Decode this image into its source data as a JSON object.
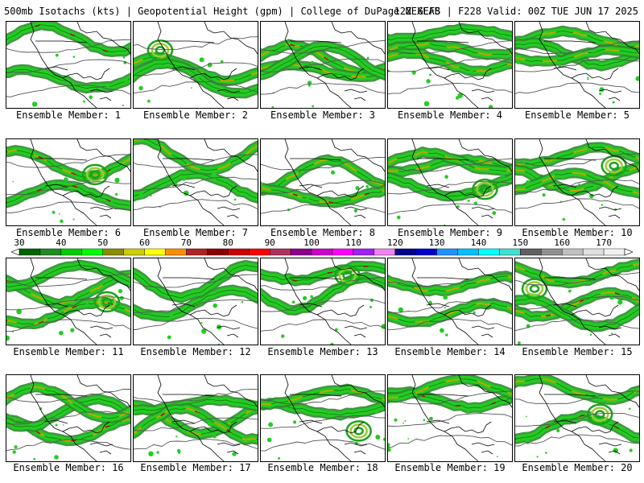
{
  "header": {
    "left_text": "500mb Isotachs (kts) | Geopotential Height (gpm) | College of DuPage NEXLAB",
    "right_text": "12Z GEFS | F228 Valid: 00Z TUE JUN 17 2025"
  },
  "members": [
    {
      "caption": "Ensemble Member: 1"
    },
    {
      "caption": "Ensemble Member: 2"
    },
    {
      "caption": "Ensemble Member: 3"
    },
    {
      "caption": "Ensemble Member: 4"
    },
    {
      "caption": "Ensemble Member: 5"
    },
    {
      "caption": "Ensemble Member: 6"
    },
    {
      "caption": "Ensemble Member: 7"
    },
    {
      "caption": "Ensemble Member: 8"
    },
    {
      "caption": "Ensemble Member: 9"
    },
    {
      "caption": "Ensemble Member: 10"
    },
    {
      "caption": "Ensemble Member: 11"
    },
    {
      "caption": "Ensemble Member: 12"
    },
    {
      "caption": "Ensemble Member: 13"
    },
    {
      "caption": "Ensemble Member: 14"
    },
    {
      "caption": "Ensemble Member: 15"
    },
    {
      "caption": "Ensemble Member: 16"
    },
    {
      "caption": "Ensemble Member: 17"
    },
    {
      "caption": "Ensemble Member: 18"
    },
    {
      "caption": "Ensemble Member: 19"
    },
    {
      "caption": "Ensemble Member: 20"
    }
  ],
  "colorbar": {
    "tick_labels": [
      "30",
      "40",
      "50",
      "60",
      "70",
      "80",
      "90",
      "100",
      "110",
      "120",
      "130",
      "140",
      "150",
      "160",
      "170"
    ],
    "tick_values": [
      30,
      40,
      50,
      60,
      70,
      80,
      90,
      100,
      110,
      120,
      130,
      140,
      150,
      160,
      170
    ],
    "min": 30,
    "max": 175,
    "step": 5,
    "colors": [
      "#006400",
      "#228b22",
      "#00cd00",
      "#00ff00",
      "#8b8b00",
      "#cdcd00",
      "#ffff00",
      "#ff8c00",
      "#b22222",
      "#8b0000",
      "#cd0000",
      "#ff0000",
      "#b03060",
      "#8b008b",
      "#cd00cd",
      "#ff00ff",
      "#a020f0",
      "#ee82ee",
      "#00008b",
      "#0000cd",
      "#1e90ff",
      "#00bfff",
      "#00ffff",
      "#40e0d0",
      "#606060",
      "#909090",
      "#c0c0c0",
      "#e0e0e0",
      "#f0f0f0"
    ]
  }
}
